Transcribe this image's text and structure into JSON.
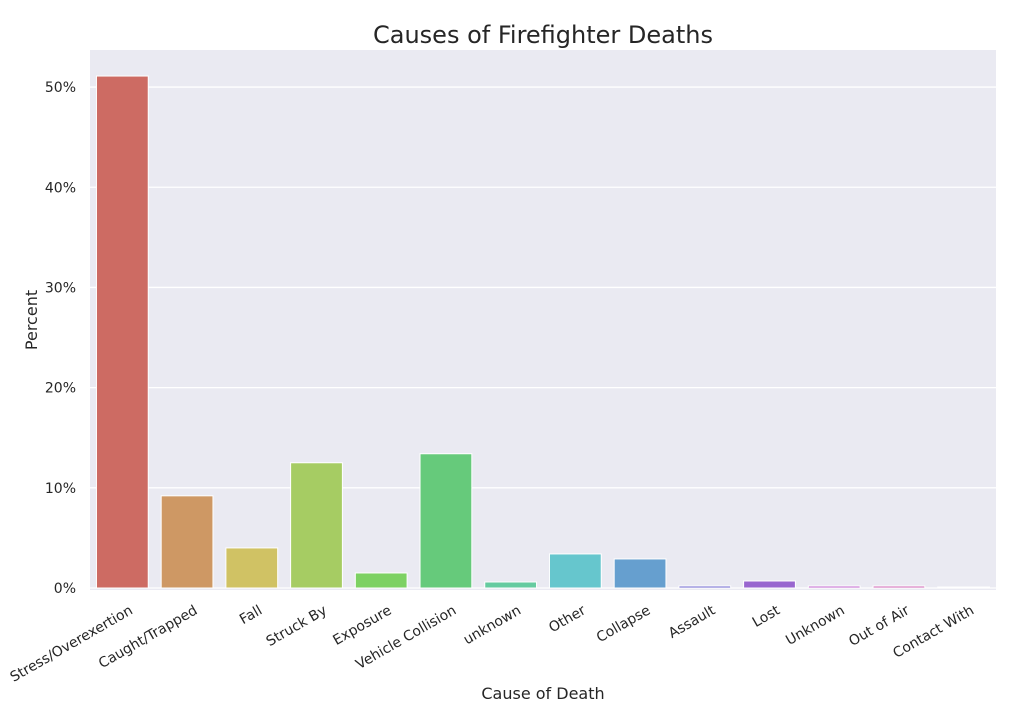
{
  "chart_data": {
    "type": "bar",
    "title": "Causes of Firefighter Deaths",
    "xlabel": "Cause of Death",
    "ylabel": "Percent",
    "categories": [
      "Stress/Overexertion",
      "Caught/Trapped",
      "Fall",
      "Struck By",
      "Exposure",
      "Vehicle Collision",
      "unknown",
      "Other",
      "Collapse",
      "Assault",
      "Lost",
      "Unknown",
      "Out of Air",
      "Contact With"
    ],
    "values": [
      51.1,
      9.2,
      4.0,
      12.5,
      1.5,
      13.4,
      0.6,
      3.4,
      2.9,
      0.2,
      0.7,
      0.2,
      0.2,
      0.1
    ],
    "colors": [
      "#cd6b63",
      "#ce9864",
      "#d0c264",
      "#a6cc63",
      "#7dd163",
      "#66ca7b",
      "#66cba0",
      "#66c6cd",
      "#669fcf",
      "#6e66cf",
      "#9966cf",
      "#c266cf",
      "#cf66b5",
      "#cf668b"
    ],
    "ylim": [
      0,
      53.7
    ],
    "yticks": [
      0,
      10,
      20,
      30,
      40,
      50
    ],
    "ytick_labels": [
      "0%",
      "10%",
      "20%",
      "30%",
      "40%",
      "50%"
    ],
    "grid": true,
    "background": "#eaeaf2"
  }
}
